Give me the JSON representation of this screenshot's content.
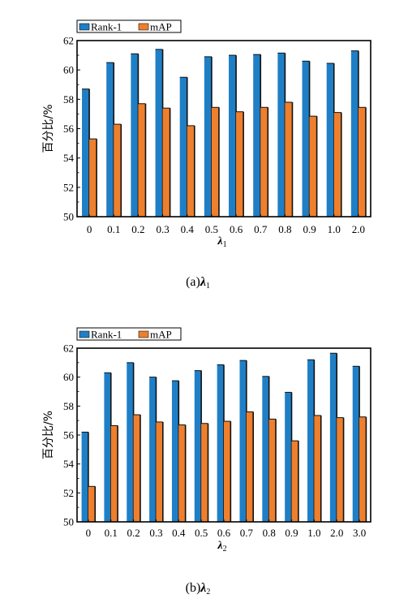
{
  "chart_data": [
    {
      "type": "bar",
      "categories": [
        "0",
        "0.1",
        "0.2",
        "0.3",
        "0.4",
        "0.5",
        "0.6",
        "0.7",
        "0.8",
        "0.9",
        "1.0",
        "2.0"
      ],
      "series": [
        {
          "name": "Rank-1",
          "values": [
            58.7,
            60.5,
            61.1,
            61.4,
            59.5,
            60.9,
            61.0,
            61.05,
            61.15,
            60.6,
            60.45,
            61.3
          ]
        },
        {
          "name": "mAP",
          "values": [
            55.3,
            56.3,
            57.7,
            57.4,
            56.2,
            57.45,
            57.15,
            57.45,
            57.8,
            56.85,
            57.1,
            57.45
          ]
        }
      ],
      "ylabel": "百分比/%",
      "xlabel": "λ",
      "xlabel_sub": "1",
      "ylim": [
        50,
        62
      ],
      "yticks": [
        50,
        52,
        54,
        56,
        58,
        60,
        62
      ],
      "caption": "(a)λ",
      "caption_sub": "1",
      "legend": "top-left"
    },
    {
      "type": "bar",
      "categories": [
        "0",
        "0.1",
        "0.2",
        "0.3",
        "0.4",
        "0.5",
        "0.6",
        "0.7",
        "0.8",
        "0.9",
        "1.0",
        "2.0",
        "3.0"
      ],
      "series": [
        {
          "name": "Rank-1",
          "values": [
            56.2,
            60.3,
            61.0,
            60.0,
            59.75,
            60.45,
            60.85,
            61.15,
            60.05,
            58.95,
            61.2,
            61.65,
            60.75
          ]
        },
        {
          "name": "mAP",
          "values": [
            52.45,
            56.65,
            57.4,
            56.9,
            56.7,
            56.8,
            56.95,
            57.6,
            57.1,
            55.6,
            57.35,
            57.2,
            57.25
          ]
        }
      ],
      "ylabel": "百分比/%",
      "xlabel": "λ",
      "xlabel_sub": "2",
      "ylim": [
        50,
        62
      ],
      "yticks": [
        50,
        52,
        54,
        56,
        58,
        60,
        62
      ],
      "caption": "(b)λ",
      "caption_sub": "2",
      "legend": "top-left"
    }
  ],
  "colors": {
    "rank1": "#1f7fc6",
    "map": "#ee7f2d",
    "axis": "#000000"
  }
}
